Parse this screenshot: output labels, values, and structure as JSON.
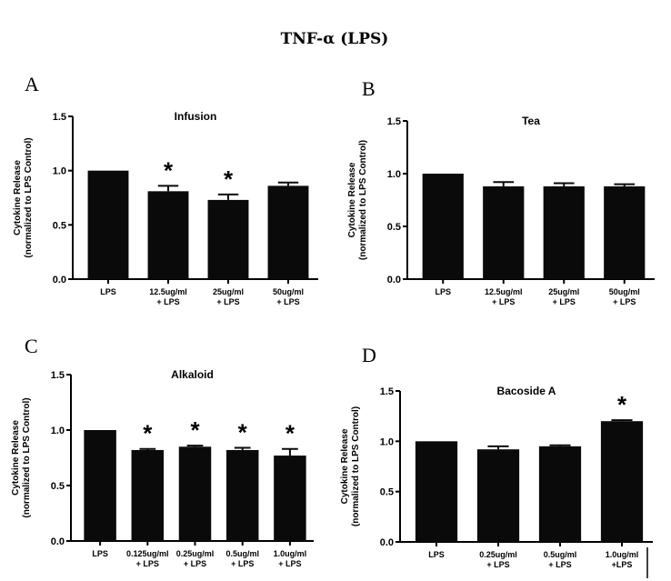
{
  "figure_title": "TNF-α (LPS)",
  "chart_data": [
    {
      "type": "bar",
      "panel": "A",
      "title": "Infusion",
      "ylabel_line1": "Cytokine Release",
      "ylabel_line2": "(normalized to LPS Control)",
      "ylim": [
        0,
        1.5
      ],
      "yticks": [
        "0.0",
        "0.5",
        "1.0",
        "1.5"
      ],
      "categories": [
        [
          "LPS",
          ""
        ],
        [
          "12.5ug/ml",
          "+ LPS"
        ],
        [
          "25ug/ml",
          "+ LPS"
        ],
        [
          "50ug/ml",
          "+ LPS"
        ]
      ],
      "values": [
        1.0,
        0.81,
        0.73,
        0.86
      ],
      "errors": [
        0,
        0.05,
        0.05,
        0.03
      ],
      "significant": [
        false,
        true,
        true,
        false
      ],
      "star": "*"
    },
    {
      "type": "bar",
      "panel": "B",
      "title": "Tea",
      "ylabel_line1": "Cytokine Release",
      "ylabel_line2": "(normalized to LPS Control)",
      "ylim": [
        0,
        1.5
      ],
      "yticks": [
        "0.0",
        "0.5",
        "1.0",
        "1.5"
      ],
      "categories": [
        [
          "LPS",
          ""
        ],
        [
          "12.5ug/ml",
          "+ LPS"
        ],
        [
          "25ug/ml",
          "+ LPS"
        ],
        [
          "50ug/ml",
          "+ LPS"
        ]
      ],
      "values": [
        1.0,
        0.88,
        0.88,
        0.88
      ],
      "errors": [
        0,
        0.04,
        0.03,
        0.02
      ],
      "significant": [
        false,
        false,
        false,
        false
      ],
      "star": "*"
    },
    {
      "type": "bar",
      "panel": "C",
      "title": "Alkaloid",
      "ylabel_line1": "Cytokine Release",
      "ylabel_line2": "(normalized to LPS Control)",
      "ylim": [
        0,
        1.5
      ],
      "yticks": [
        "0.0",
        "0.5",
        "1.0",
        "1.5"
      ],
      "categories": [
        [
          "LPS",
          ""
        ],
        [
          "0.125ug/ml",
          "+ LPS"
        ],
        [
          "0.25ug/ml",
          "+ LPS"
        ],
        [
          "0.5ug/ml",
          "+ LPS"
        ],
        [
          "1.0ug/ml",
          "+ LPS"
        ]
      ],
      "values": [
        1.0,
        0.82,
        0.85,
        0.82,
        0.77
      ],
      "errors": [
        0,
        0.01,
        0.01,
        0.02,
        0.06
      ],
      "significant": [
        false,
        true,
        true,
        true,
        true
      ],
      "star": "*"
    },
    {
      "type": "bar",
      "panel": "D",
      "title": "Bacoside A",
      "ylabel_line1": "Cytokine Release",
      "ylabel_line2": "(normalized to LPS Control)",
      "ylim": [
        0,
        1.5
      ],
      "yticks": [
        "0.0",
        "0.5",
        "1.0",
        "1.5"
      ],
      "categories": [
        [
          "LPS",
          ""
        ],
        [
          "0.25ug/ml",
          "+ LPS"
        ],
        [
          "0.5ug/ml",
          "+ LPS"
        ],
        [
          "1.0ug/ml",
          "+LPS"
        ]
      ],
      "values": [
        1.0,
        0.92,
        0.95,
        1.2
      ],
      "errors": [
        0,
        0.03,
        0.01,
        0.01
      ],
      "significant": [
        false,
        false,
        false,
        true
      ],
      "star": "*"
    }
  ]
}
